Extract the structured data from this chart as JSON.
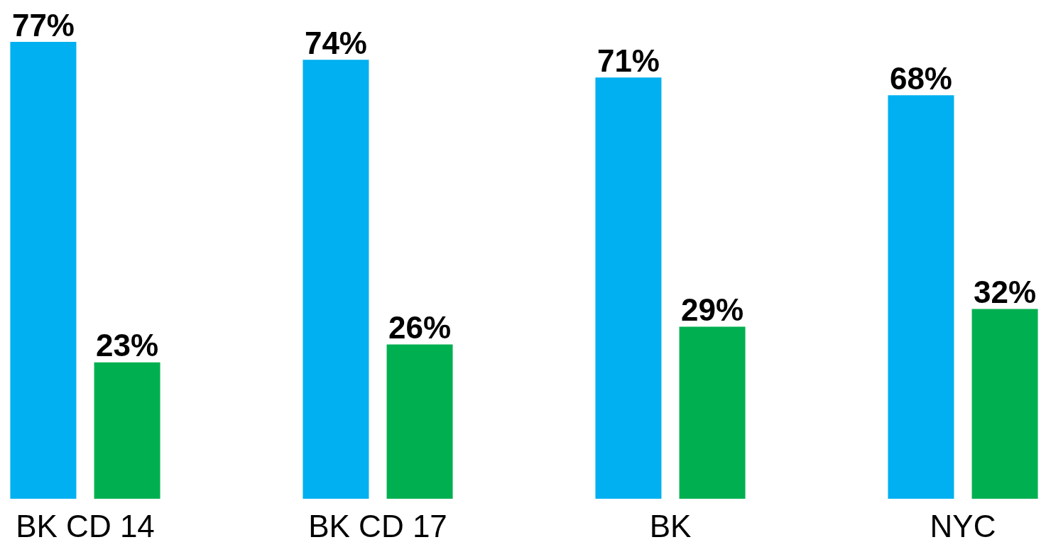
{
  "chart_data": {
    "type": "bar",
    "categories": [
      "BK CD 14",
      "BK CD 17",
      "BK",
      "NYC"
    ],
    "series": [
      {
        "color": "#00b0f0",
        "values": [
          77,
          74,
          71,
          68
        ],
        "value_labels": [
          "77%",
          "74%",
          "71%",
          "68%"
        ]
      },
      {
        "color": "#00b050",
        "values": [
          23,
          26,
          29,
          32
        ],
        "value_labels": [
          "23%",
          "26%",
          "29%",
          "32%"
        ]
      }
    ],
    "tick_labels": "x"
  }
}
